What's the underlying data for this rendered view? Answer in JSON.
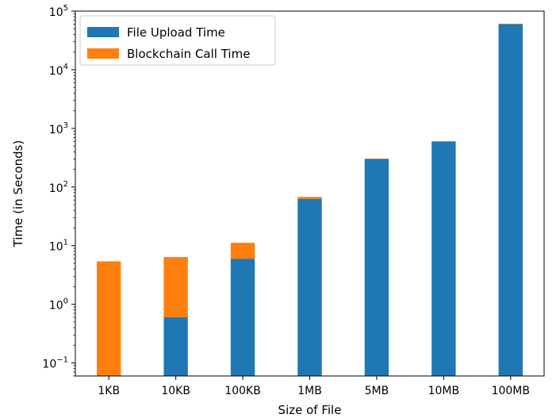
{
  "chart_data": {
    "type": "bar",
    "stacked": true,
    "y_scale": "log",
    "categories": [
      "1KB",
      "10KB",
      "100KB",
      "1MB",
      "5MB",
      "10MB",
      "100MB"
    ],
    "series": [
      {
        "name": "File Upload Time",
        "color": "#1f77b4",
        "values": [
          0,
          0.6,
          6,
          63,
          300,
          600,
          60000
        ]
      },
      {
        "name": "Blockchain Call Time",
        "color": "#ff7f0e",
        "values": [
          5.4,
          5.8,
          5.2,
          5,
          5,
          5,
          1000
        ]
      }
    ],
    "xlabel": "Size of File",
    "ylabel": "Time (in Seconds)",
    "ylim": [
      0.06,
      100000
    ],
    "y_ticks": [
      {
        "value": 0.1,
        "base": "10",
        "exp": "−1"
      },
      {
        "value": 1,
        "base": "10",
        "exp": "0"
      },
      {
        "value": 10,
        "base": "10",
        "exp": "1"
      },
      {
        "value": 100,
        "base": "10",
        "exp": "2"
      },
      {
        "value": 1000,
        "base": "10",
        "exp": "3"
      },
      {
        "value": 10000,
        "base": "10",
        "exp": "4"
      },
      {
        "value": 100000,
        "base": "10",
        "exp": "5"
      }
    ],
    "legend_position": "top-left",
    "grid": false
  }
}
